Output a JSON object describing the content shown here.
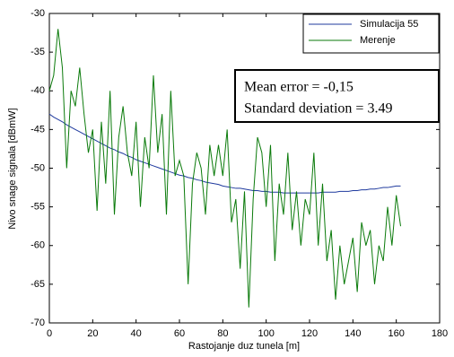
{
  "chart_data": {
    "type": "line",
    "xlabel": "Rastojanje duz tunela [m]",
    "ylabel": "Nivo snage signala [dBmW]",
    "annotations": [
      "Mean error = -0,15",
      "Standard deviation = 3.49"
    ],
    "legend": "upper right",
    "x": [
      0,
      2,
      4,
      6,
      8,
      10,
      12,
      14,
      16,
      18,
      20,
      22,
      24,
      26,
      28,
      30,
      32,
      34,
      36,
      38,
      40,
      42,
      44,
      46,
      48,
      50,
      52,
      54,
      56,
      58,
      60,
      62,
      64,
      66,
      68,
      70,
      72,
      74,
      76,
      78,
      80,
      82,
      84,
      86,
      88,
      90,
      92,
      94,
      96,
      98,
      100,
      102,
      104,
      106,
      108,
      110,
      112,
      114,
      116,
      118,
      120,
      122,
      124,
      126,
      128,
      130,
      132,
      134,
      136,
      138,
      140,
      142,
      144,
      146,
      148,
      150,
      152,
      154,
      156,
      158,
      160,
      162
    ],
    "series": [
      {
        "name": "Simulacija 55",
        "color": "#1f3a9e",
        "values": [
          -43.0,
          -43.4,
          -43.7,
          -44.0,
          -44.4,
          -44.7,
          -45.0,
          -45.3,
          -45.6,
          -45.9,
          -46.2,
          -46.5,
          -46.8,
          -47.1,
          -47.4,
          -47.6,
          -47.9,
          -48.1,
          -48.4,
          -48.6,
          -48.9,
          -49.1,
          -49.3,
          -49.5,
          -49.7,
          -49.9,
          -50.1,
          -50.3,
          -50.5,
          -50.7,
          -50.9,
          -51.0,
          -51.2,
          -51.3,
          -51.5,
          -51.6,
          -51.8,
          -51.9,
          -52.0,
          -52.1,
          -52.3,
          -52.4,
          -52.5,
          -52.6,
          -52.6,
          -52.7,
          -52.8,
          -52.9,
          -52.9,
          -53.0,
          -53.0,
          -53.1,
          -53.1,
          -53.1,
          -53.2,
          -53.2,
          -53.2,
          -53.2,
          -53.2,
          -53.2,
          -53.2,
          -53.2,
          -53.2,
          -53.1,
          -53.1,
          -53.1,
          -53.1,
          -53.0,
          -53.0,
          -53.0,
          -52.9,
          -52.9,
          -52.8,
          -52.8,
          -52.7,
          -52.7,
          -52.6,
          -52.5,
          -52.5,
          -52.4,
          -52.3,
          -52.3
        ]
      },
      {
        "name": "Merenje",
        "color": "#0a7a0a",
        "values": [
          -40,
          -38,
          -32,
          -37,
          -50,
          -40,
          -42,
          -37,
          -43,
          -48,
          -45,
          -55.5,
          -44,
          -52,
          -40,
          -56,
          -46,
          -42,
          -48,
          -51,
          -44,
          -55,
          -46,
          -50,
          -38,
          -48,
          -43,
          -56,
          -40,
          -51,
          -49,
          -51,
          -65,
          -52,
          -48,
          -50,
          -56,
          -47,
          -51,
          -47,
          -51,
          -45,
          -57,
          -54,
          -63,
          -53,
          -68,
          -54,
          -46,
          -48,
          -55,
          -47,
          -62,
          -52,
          -56,
          -48,
          -58,
          -53,
          -60,
          -54,
          -56,
          -48,
          -60,
          -52,
          -62,
          -58,
          -67,
          -60,
          -65,
          -62,
          -59,
          -66,
          -57,
          -60,
          -58,
          -65,
          -60,
          -62,
          -55,
          -60,
          -53.5,
          -57.5
        ]
      }
    ],
    "xlim": [
      0,
      180
    ],
    "xticks": [
      0,
      20,
      40,
      60,
      80,
      100,
      120,
      140,
      160,
      180
    ],
    "ylim": [
      -70,
      -30
    ],
    "yticks": [
      -70,
      -65,
      -60,
      -55,
      -50,
      -45,
      -40,
      -35,
      -30
    ]
  }
}
